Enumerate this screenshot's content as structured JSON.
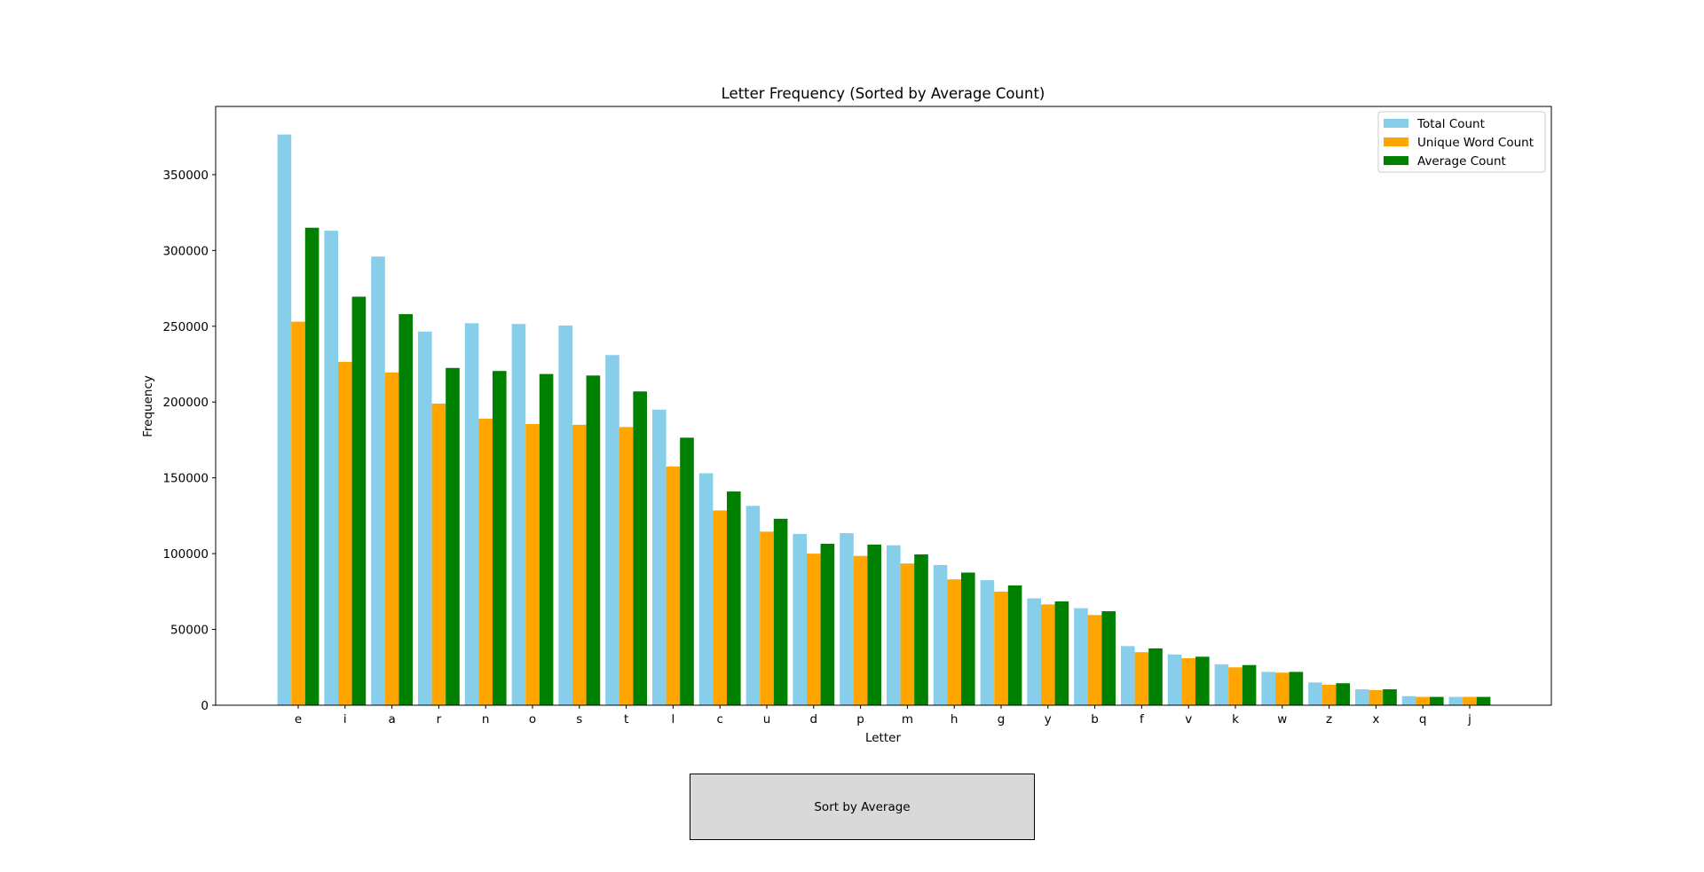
{
  "chart_data": {
    "type": "bar",
    "title": "Letter Frequency (Sorted by Average Count)",
    "xlabel": "Letter",
    "ylabel": "Frequency",
    "ylim": [
      0,
      395000
    ],
    "yticks": [
      0,
      50000,
      100000,
      150000,
      200000,
      250000,
      300000,
      350000
    ],
    "legend_position": "top-right",
    "grid": false,
    "categories": [
      "e",
      "i",
      "a",
      "r",
      "n",
      "o",
      "s",
      "t",
      "l",
      "c",
      "u",
      "d",
      "p",
      "m",
      "h",
      "g",
      "y",
      "b",
      "f",
      "v",
      "k",
      "w",
      "z",
      "x",
      "q",
      "j"
    ],
    "series": [
      {
        "name": "Total Count",
        "color": "#87ceeb",
        "values": [
          376500,
          313000,
          296000,
          246500,
          252000,
          251500,
          250500,
          231000,
          195000,
          153000,
          131500,
          113000,
          113500,
          105500,
          92500,
          82500,
          70500,
          64000,
          39000,
          33500,
          27000,
          22000,
          15000,
          10500,
          6000,
          5500
        ]
      },
      {
        "name": "Unique Word Count",
        "color": "#ffa500",
        "values": [
          253000,
          226500,
          219500,
          199000,
          189000,
          185500,
          185000,
          183500,
          157500,
          128500,
          114500,
          100000,
          98500,
          93500,
          83000,
          75000,
          66500,
          59500,
          35000,
          31000,
          25000,
          21500,
          13500,
          10000,
          5500,
          5500
        ]
      },
      {
        "name": "Average Count",
        "color": "#008000",
        "values": [
          315000,
          269500,
          258000,
          222500,
          220500,
          218500,
          217500,
          207000,
          176500,
          141000,
          123000,
          106500,
          106000,
          99500,
          87500,
          79000,
          68500,
          62000,
          37500,
          32000,
          26500,
          22000,
          14500,
          10500,
          5500,
          5500
        ]
      }
    ]
  },
  "controls": {
    "sort_button_label": "Sort by Average"
  }
}
